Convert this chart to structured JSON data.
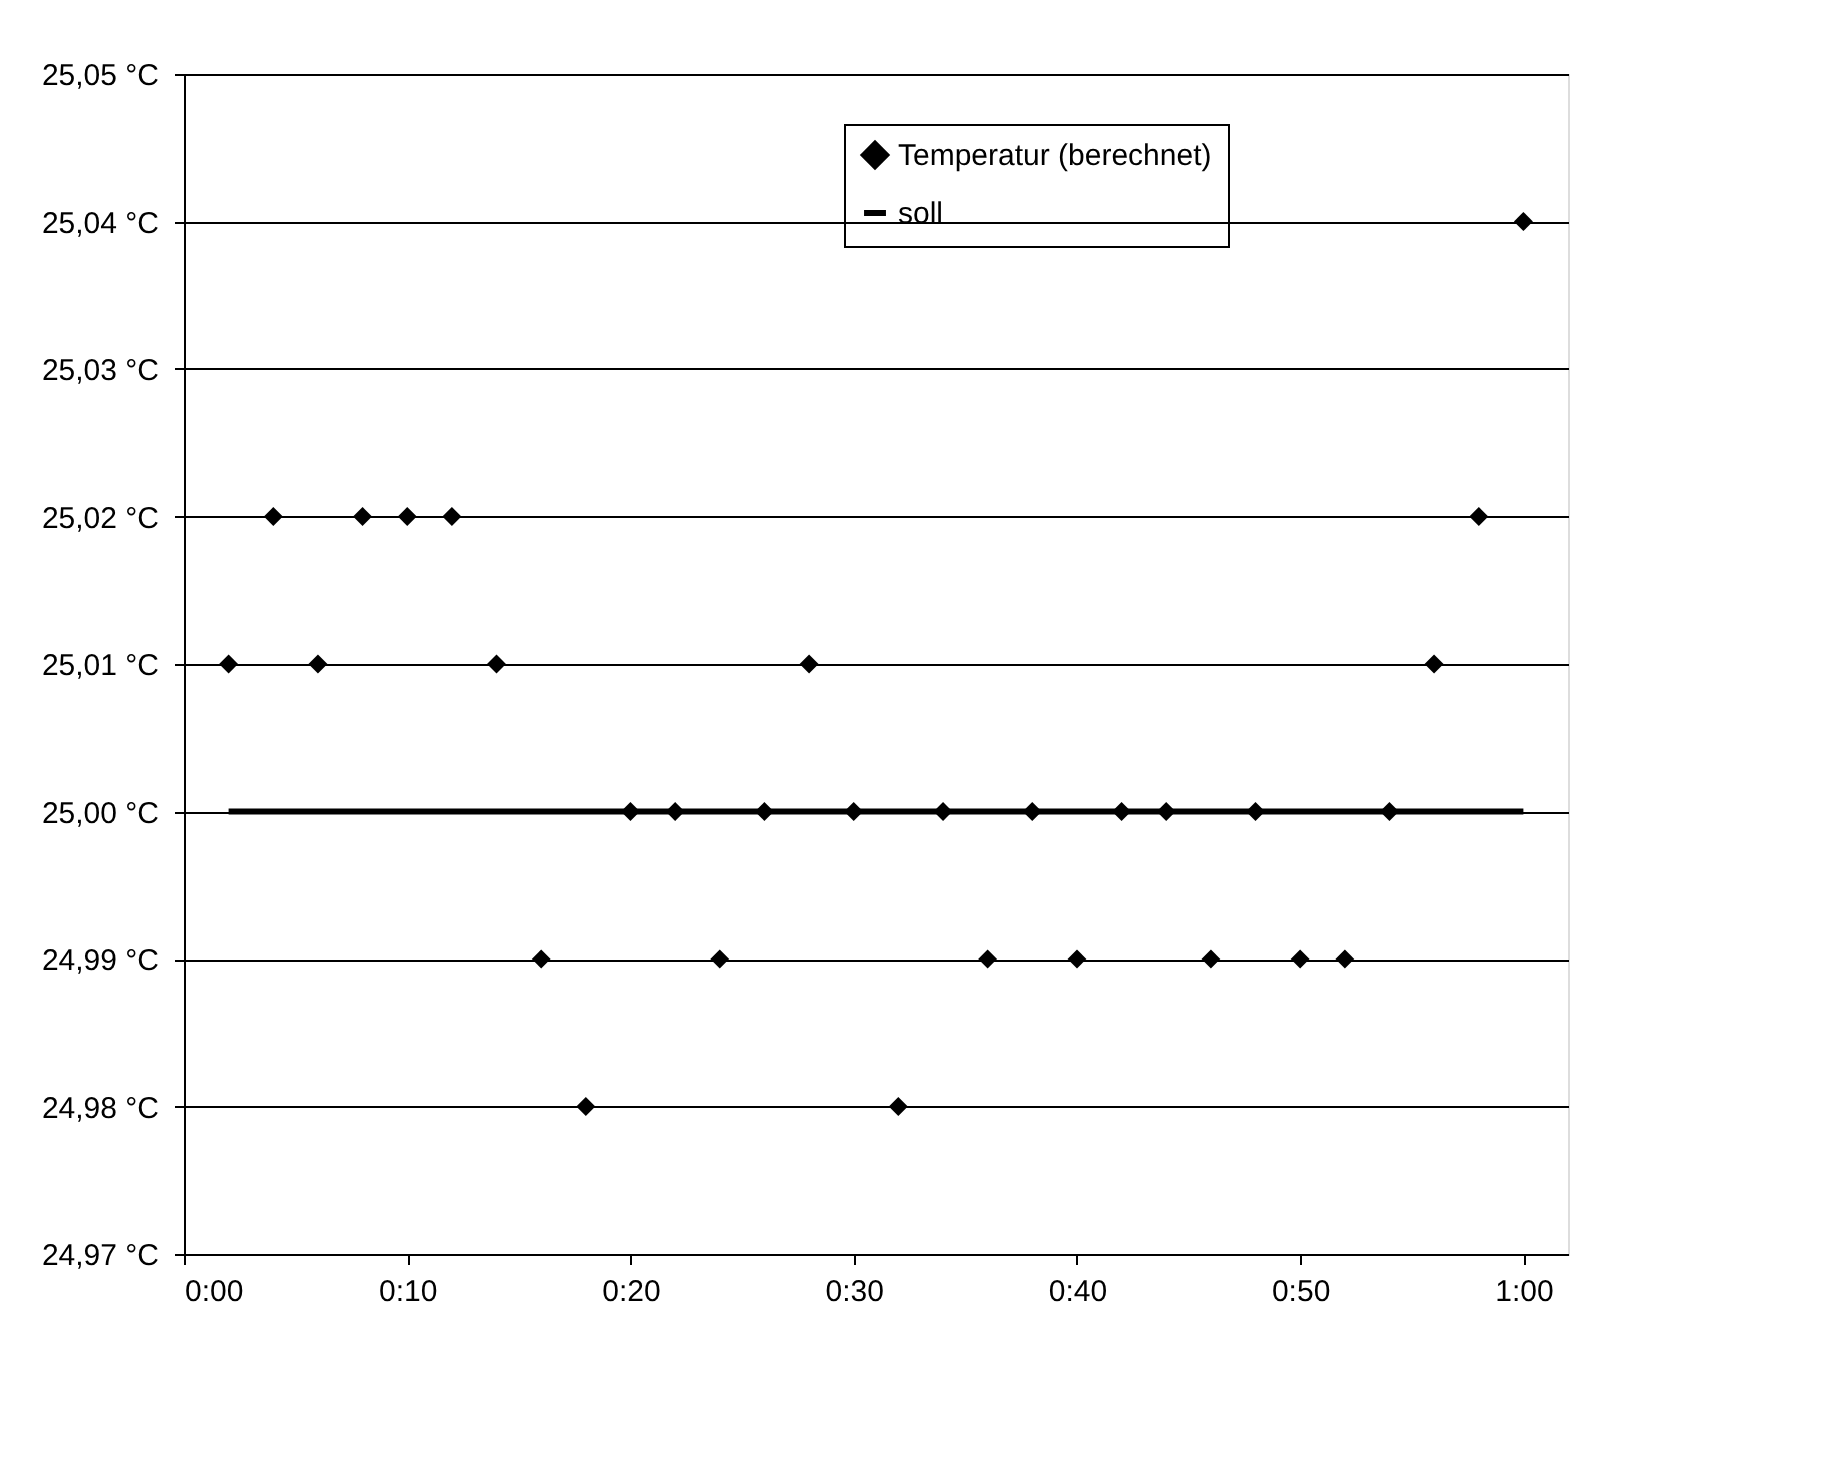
{
  "chart_data": {
    "type": "scatter",
    "xlim": [
      0,
      1.0333
    ],
    "ylim": [
      24.97,
      25.05
    ],
    "xticks": [
      {
        "value": 0,
        "label": "0:00"
      },
      {
        "value": 0.1667,
        "label": "0:10"
      },
      {
        "value": 0.3333,
        "label": "0:20"
      },
      {
        "value": 0.5,
        "label": "0:30"
      },
      {
        "value": 0.6667,
        "label": "0:40"
      },
      {
        "value": 0.8333,
        "label": "0:50"
      },
      {
        "value": 1,
        "label": "1:00"
      }
    ],
    "yticks": [
      {
        "value": 24.97,
        "label": "24,97 °C"
      },
      {
        "value": 24.98,
        "label": "24,98 °C"
      },
      {
        "value": 24.99,
        "label": "24,99 °C"
      },
      {
        "value": 25.0,
        "label": "25,00 °C"
      },
      {
        "value": 25.01,
        "label": "25,01 °C"
      },
      {
        "value": 25.02,
        "label": "25,02 °C"
      },
      {
        "value": 25.03,
        "label": "25,03 °C"
      },
      {
        "value": 25.04,
        "label": "25,04 °C"
      },
      {
        "value": 25.05,
        "label": "25,05 °C"
      }
    ],
    "grid": "y",
    "legend": "top right",
    "series": [
      {
        "name": "Temperatur (berechnet)",
        "marker": "diamond",
        "color": "#000000",
        "x": [
          0.0333,
          0.0667,
          0.1,
          0.1333,
          0.1667,
          0.2,
          0.2333,
          0.2667,
          0.3,
          0.3333,
          0.3667,
          0.4,
          0.4333,
          0.4667,
          0.5,
          0.5333,
          0.5667,
          0.6,
          0.6333,
          0.6667,
          0.7,
          0.7333,
          0.7667,
          0.8,
          0.8333,
          0.8667,
          0.9,
          0.9333,
          0.9667,
          1
        ],
        "values": [
          25.01,
          25.02,
          25.01,
          25.02,
          25.02,
          25.02,
          25.01,
          24.99,
          24.98,
          25.0,
          25.0,
          24.99,
          25.0,
          25.01,
          25.0,
          24.98,
          25.0,
          24.99,
          25.0,
          24.99,
          25.0,
          25.0,
          24.99,
          25.0,
          24.99,
          24.99,
          25.0,
          25.01,
          25.02,
          25.04
        ]
      },
      {
        "name": "soll",
        "type": "line",
        "line_style": "solid",
        "color": "#000000",
        "x": [
          0.0333,
          1
        ],
        "values": [
          25.0,
          25.0
        ]
      }
    ]
  }
}
